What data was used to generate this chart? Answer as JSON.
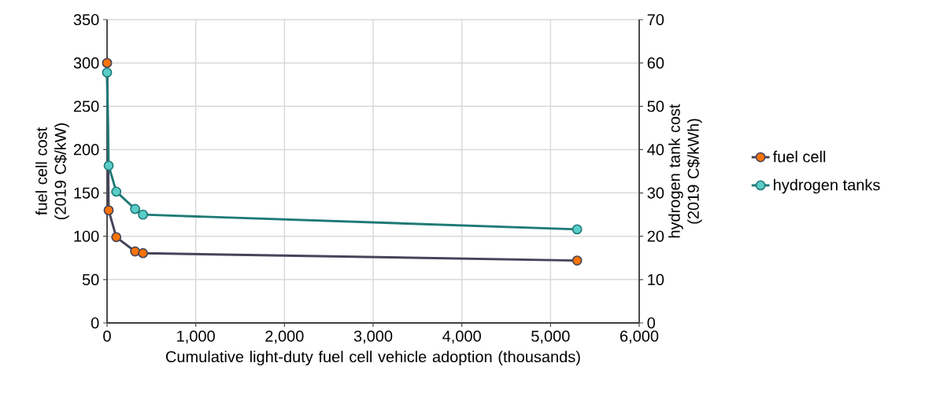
{
  "chart_data": {
    "type": "line",
    "xlabel": "Cumulative light-duty fuel cell vehicle adoption (thousands)",
    "ylabel": "fuel cell cost (2019 C$/kW)",
    "y2label": "hydrogen tank cost (2019 C$/kWh)",
    "x": [
      0,
      18,
      104,
      316,
      405,
      5300
    ],
    "series": [
      {
        "name": "fuel cell",
        "color": "#44445a",
        "values": [
          300,
          130,
          99,
          82.5,
          80.5,
          72
        ]
      },
      {
        "name": "hydrogen tanks",
        "color": "#1e7a76",
        "axis": "y2",
        "values": [
          57.8,
          36.3,
          30.3,
          26.3,
          25,
          21.6
        ]
      }
    ],
    "xlim": [
      0,
      6000
    ],
    "xticks": [
      0,
      {
        "value": 1000,
        "label": "1,000"
      },
      {
        "value": 2000,
        "label": "2,000"
      },
      {
        "value": 3000,
        "label": "3,000"
      },
      {
        "value": 4000,
        "label": "4,000"
      },
      {
        "value": 5000,
        "label": "5,000"
      },
      {
        "value": 6000,
        "label": "6,000"
      }
    ],
    "ylim": [
      0,
      350
    ],
    "yticks": [
      0,
      50,
      100,
      150,
      200,
      250,
      300,
      350
    ],
    "y2lim": [
      0,
      70
    ],
    "y2ticks": [
      0,
      10,
      20,
      30,
      40,
      50,
      60,
      70
    ],
    "grid": true,
    "legend": "right",
    "marker": "circle",
    "line_style": "solid"
  }
}
